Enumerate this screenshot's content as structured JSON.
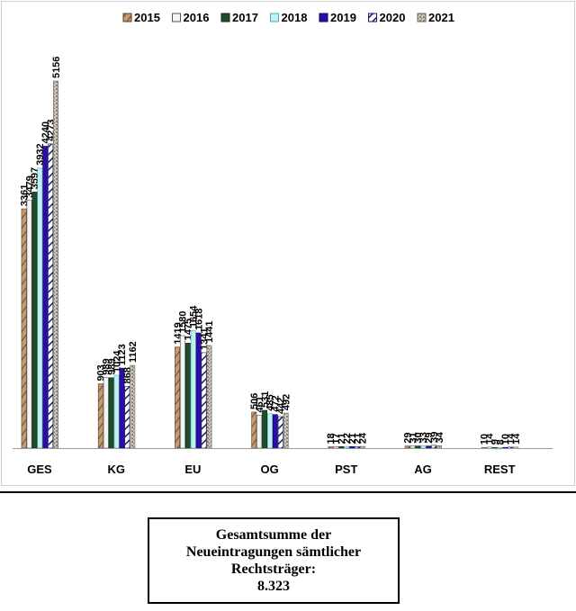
{
  "chart_data": {
    "type": "bar",
    "categories": [
      "GES",
      "KG",
      "EU",
      "OG",
      "PST",
      "AG",
      "REST"
    ],
    "series": [
      {
        "name": "2015",
        "values": [
          3361,
          903,
          1419,
          506,
          18,
          29,
          10
        ]
      },
      {
        "name": "2016",
        "values": [
          3479,
          989,
          1580,
          461,
          17,
          31,
          14
        ]
      },
      {
        "name": "2017",
        "values": [
          3597,
          989,
          1475,
          531,
          21,
          30,
          9
        ]
      },
      {
        "name": "2018",
        "values": [
          3932,
          1024,
          1654,
          485,
          22,
          33,
          8
        ]
      },
      {
        "name": "2019",
        "values": [
          4240,
          1123,
          1618,
          472,
          21,
          29,
          10
        ]
      },
      {
        "name": "2020",
        "values": [
          4273,
          868,
          1341,
          442,
          21,
          39,
          14
        ]
      },
      {
        "name": "2021",
        "values": [
          5156,
          1162,
          1441,
          492,
          24,
          34,
          14
        ]
      }
    ],
    "ylim": [
      0,
      5700
    ],
    "legend_position": "top",
    "grid": false,
    "colors": [
      "#c49a73",
      "#f4f4f4",
      "#1f4d2b",
      "#bff1f4",
      "#2a0ea6",
      "#3b6fd0",
      "#b8b2a8"
    ]
  },
  "summary": {
    "line1": "Gesamtsumme der",
    "line2": "Neueintragungen sämtlicher",
    "line3": "Rechtsträger:",
    "total": "8.323"
  }
}
